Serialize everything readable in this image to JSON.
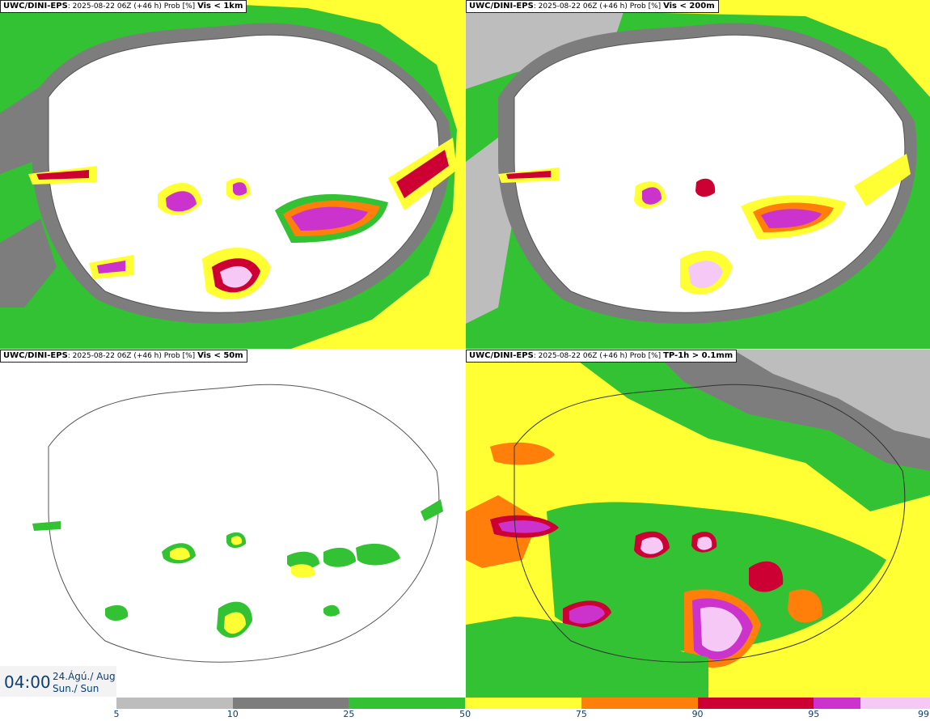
{
  "panels": [
    {
      "source": "UWC/DINI-EPS",
      "run": "2025-08-22 06Z (+46 h) Prob [%]",
      "variable": "Vis < 1km"
    },
    {
      "source": "UWC/DINI-EPS",
      "run": "2025-08-22 06Z (+46 h) Prob [%]",
      "variable": "Vis < 200m"
    },
    {
      "source": "UWC/DINI-EPS",
      "run": "2025-08-22 06Z (+46 h) Prob [%]",
      "variable": "Vis < 50m"
    },
    {
      "source": "UWC/DINI-EPS",
      "run": "2025-08-22 06Z (+46 h) Prob [%]",
      "variable": "TP-1h > 0.1mm"
    }
  ],
  "valid_time": {
    "time": "04:00",
    "date": "24.Ágú./ Aug",
    "day": "Sun./ Sun"
  },
  "legend": {
    "ticks": [
      "5",
      "10",
      "25",
      "50",
      "75",
      "90",
      "95",
      "99"
    ],
    "segments": [
      {
        "from": 5,
        "to": 10,
        "color": "#bdbdbd"
      },
      {
        "from": 10,
        "to": 25,
        "color": "#7d7d7d"
      },
      {
        "from": 25,
        "to": 50,
        "color": "#33c233"
      },
      {
        "from": 50,
        "to": 75,
        "color": "#ffff33"
      },
      {
        "from": 75,
        "to": 90,
        "color": "#ff7f0a"
      },
      {
        "from": 90,
        "to": 95,
        "color": "#cc0033"
      },
      {
        "from": 95,
        "to": 99,
        "color": "#cc33cc"
      },
      {
        "from": 99,
        "to": 100,
        "color": "#f5c8f5"
      }
    ]
  }
}
